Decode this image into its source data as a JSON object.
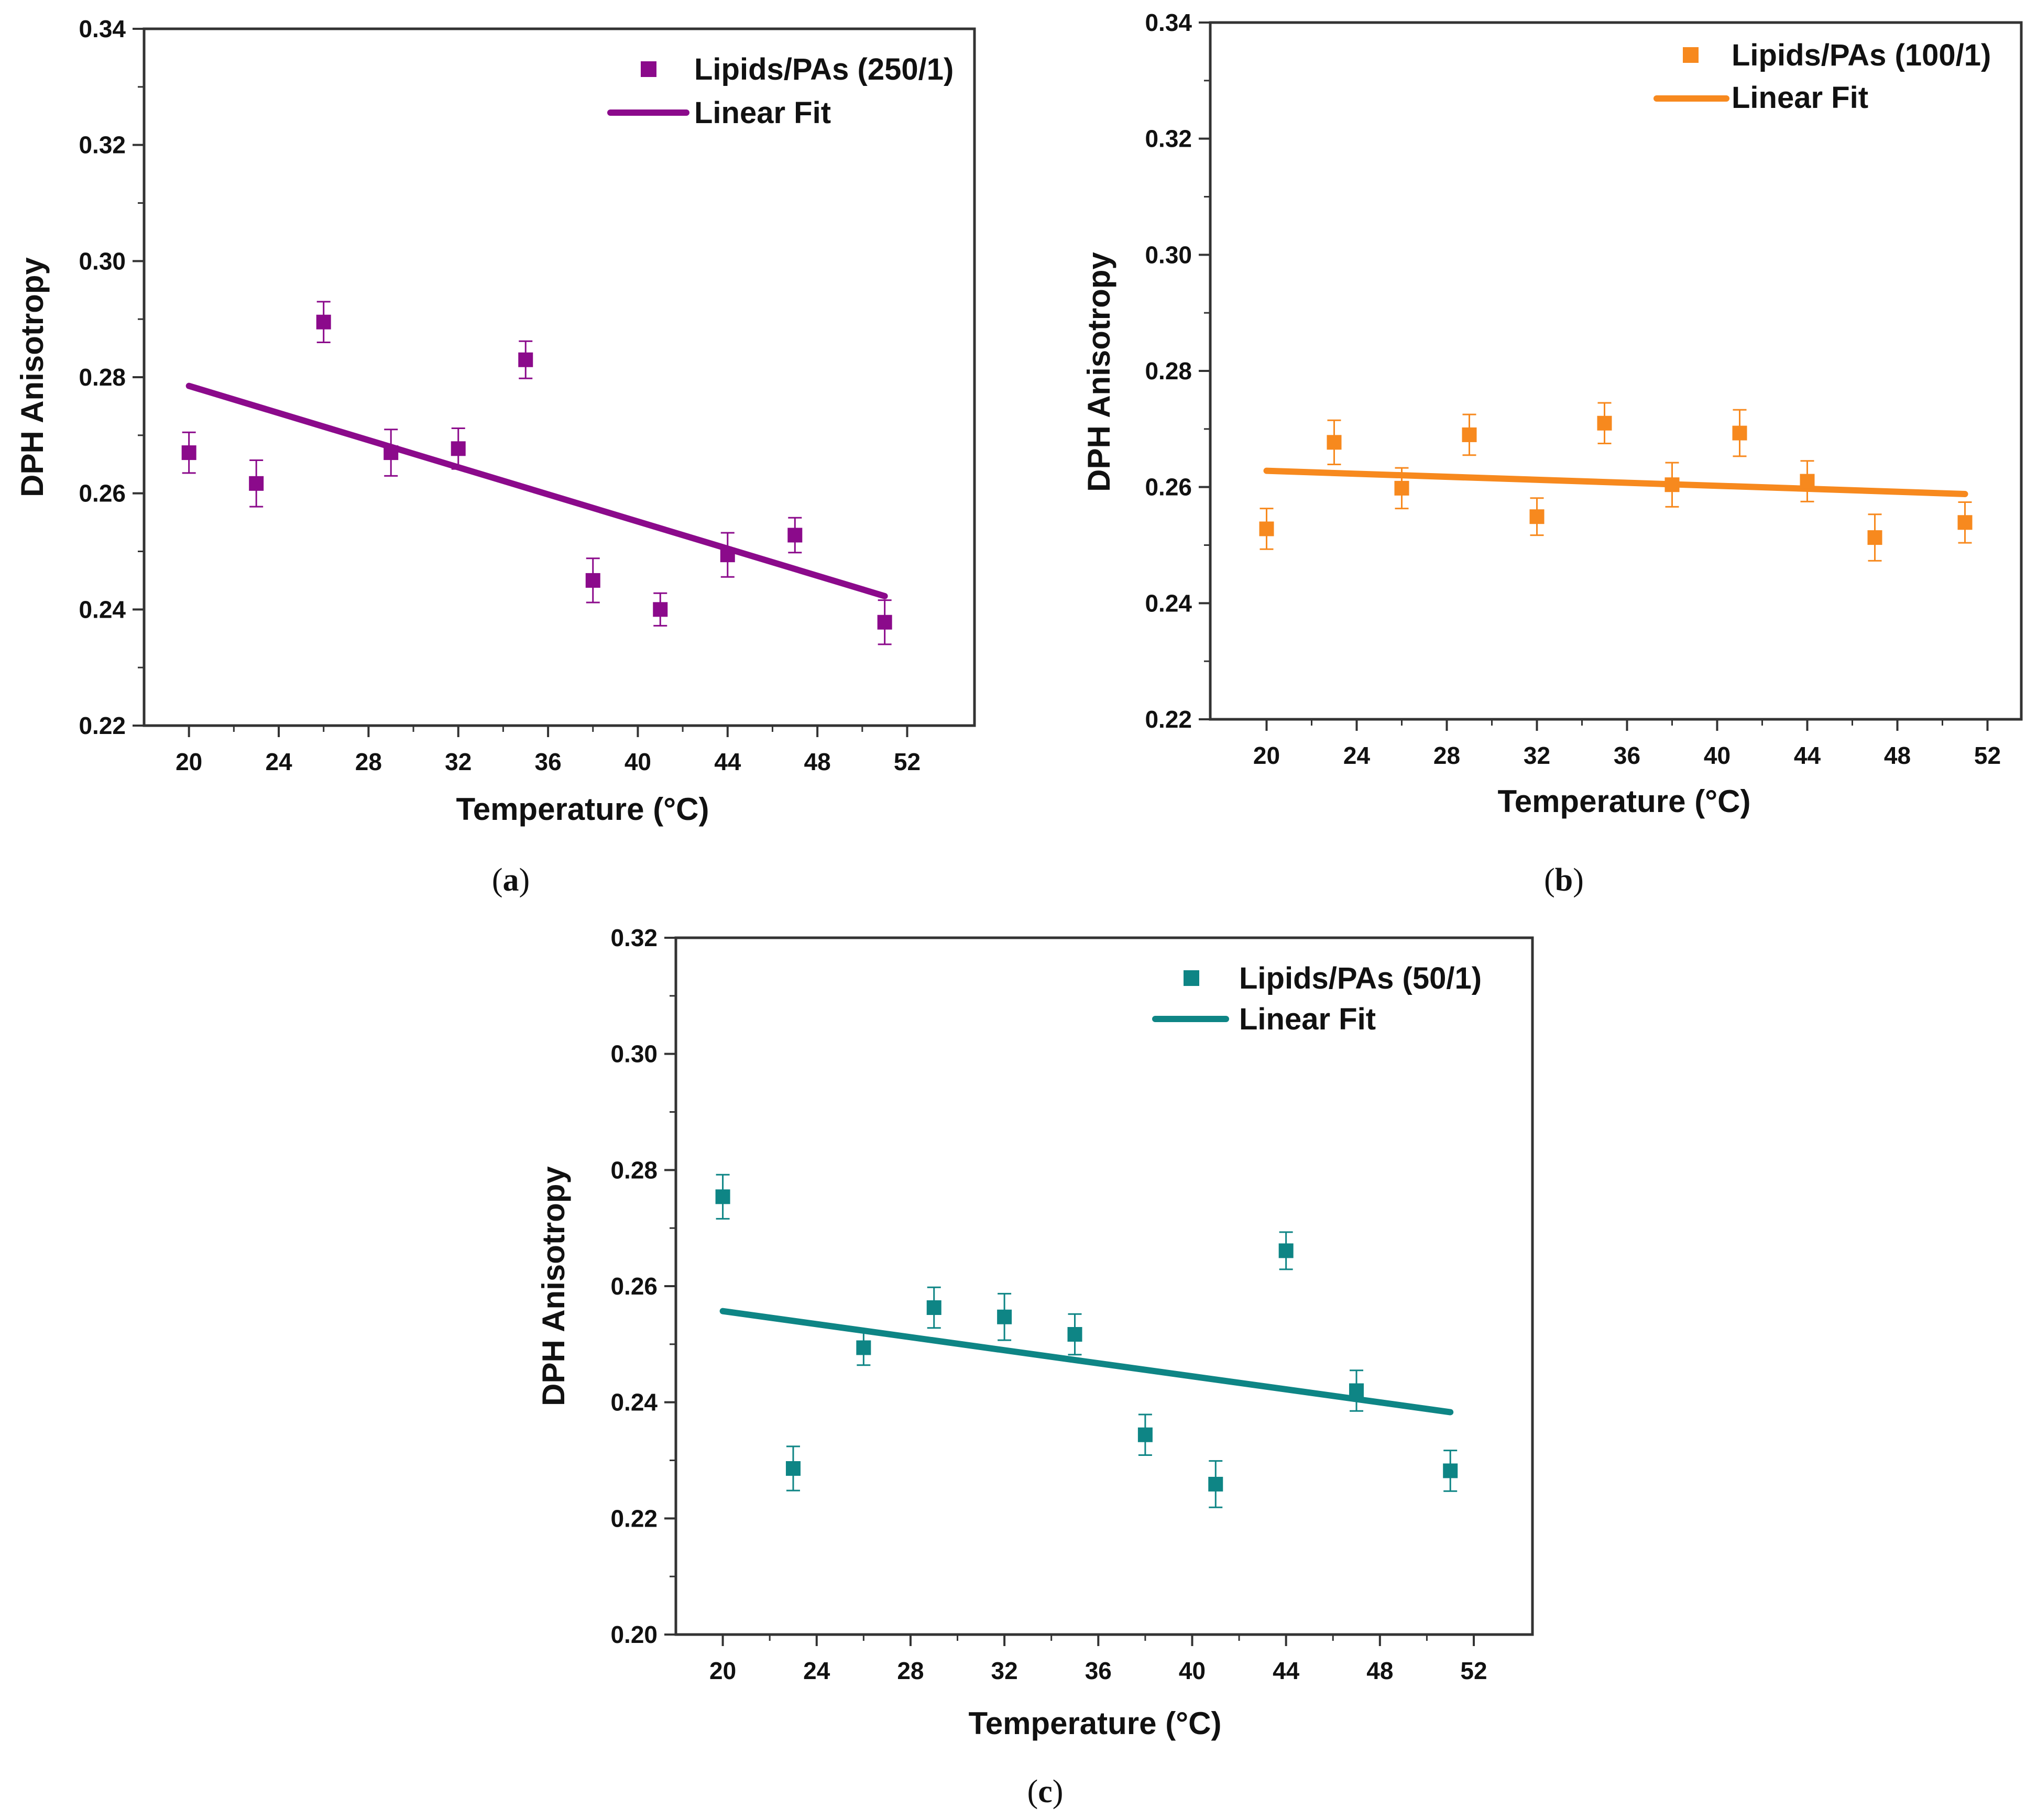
{
  "chart_data": [
    {
      "type": "scatter",
      "panel_label": "a",
      "caption": "(a)",
      "xlabel": "Temperature (°C)",
      "ylabel": "DPH Anisotropy",
      "xlim": [
        18,
        55
      ],
      "ylim": [
        0.22,
        0.34
      ],
      "xticks": [
        20,
        24,
        28,
        32,
        36,
        40,
        44,
        48,
        52
      ],
      "xtick_labels": [
        "20",
        "24",
        "28",
        "32",
        "36",
        "40",
        "44",
        "48",
        "52"
      ],
      "yticks": [
        0.22,
        0.24,
        0.26,
        0.28,
        0.3,
        0.32,
        0.34
      ],
      "ytick_labels": [
        "0.22",
        "0.24",
        "0.26",
        "0.28",
        "0.30",
        "0.32",
        "0.34"
      ],
      "color": "#8B0A8B",
      "legend_position": "top-right",
      "series": [
        {
          "name": "Lipids/PAs (250/1)",
          "marker": "square",
          "x": [
            20,
            23,
            26,
            29,
            32,
            35,
            38,
            41,
            44,
            47,
            51
          ],
          "y": [
            0.267,
            0.2617,
            0.2895,
            0.267,
            0.2677,
            0.283,
            0.245,
            0.24,
            0.2494,
            0.2528,
            0.2378
          ],
          "yerr": [
            0.0035,
            0.004,
            0.0035,
            0.004,
            0.0035,
            0.0032,
            0.0038,
            0.0028,
            0.0038,
            0.003,
            0.0038
          ]
        },
        {
          "name": "Linear Fit",
          "style": "line",
          "x": [
            20,
            51
          ],
          "y": [
            0.2785,
            0.2423
          ]
        }
      ]
    },
    {
      "type": "scatter",
      "panel_label": "b",
      "caption": "(b)",
      "xlabel": "Temperature (°C)",
      "ylabel": "DPH Anisotropy",
      "xlim": [
        17.5,
        53.5
      ],
      "ylim": [
        0.22,
        0.34
      ],
      "xticks": [
        20,
        24,
        28,
        32,
        36,
        40,
        44,
        48,
        52
      ],
      "xtick_labels": [
        "20",
        "24",
        "28",
        "32",
        "36",
        "40",
        "44",
        "48",
        "52"
      ],
      "yticks": [
        0.22,
        0.24,
        0.26,
        0.28,
        0.3,
        0.32,
        0.34
      ],
      "ytick_labels": [
        "0.22",
        "0.24",
        "0.26",
        "0.28",
        "0.30",
        "0.32",
        "0.34"
      ],
      "color": "#F7891E",
      "legend_position": "top-right",
      "series": [
        {
          "name": "Lipids/PAs (100/1)",
          "marker": "square",
          "x": [
            20,
            23,
            26,
            29,
            32,
            35,
            38,
            41,
            44,
            47,
            51
          ],
          "y": [
            0.2528,
            0.2677,
            0.2598,
            0.269,
            0.2549,
            0.271,
            0.2604,
            0.2693,
            0.261,
            0.2513,
            0.2539
          ],
          "yerr": [
            0.0035,
            0.0038,
            0.0035,
            0.0035,
            0.0032,
            0.0035,
            0.0038,
            0.004,
            0.0035,
            0.004,
            0.0035
          ]
        },
        {
          "name": "Linear Fit",
          "style": "line",
          "x": [
            20,
            51
          ],
          "y": [
            0.2628,
            0.2588
          ]
        }
      ]
    },
    {
      "type": "scatter",
      "panel_label": "c",
      "caption": "(c)",
      "xlabel": "Temperature (°C)",
      "ylabel": "DPH Anisotropy",
      "xlim": [
        18,
        54.5
      ],
      "ylim": [
        0.2,
        0.32
      ],
      "xticks": [
        20,
        24,
        28,
        32,
        36,
        40,
        44,
        48,
        52
      ],
      "xtick_labels": [
        "20",
        "24",
        "28",
        "32",
        "36",
        "40",
        "44",
        "48",
        "52"
      ],
      "yticks": [
        0.2,
        0.22,
        0.24,
        0.26,
        0.28,
        0.3,
        0.32
      ],
      "ytick_labels": [
        "0.20",
        "0.22",
        "0.24",
        "0.26",
        "0.28",
        "0.30",
        "0.32"
      ],
      "color": "#0E8585",
      "legend_position": "top-right",
      "series": [
        {
          "name": "Lipids/PAs (50/1)",
          "marker": "square",
          "x": [
            20,
            23,
            26,
            29,
            32,
            35,
            38,
            41,
            44,
            47,
            51
          ],
          "y": [
            0.2754,
            0.2286,
            0.2494,
            0.2563,
            0.2547,
            0.2517,
            0.2344,
            0.2259,
            0.2661,
            0.242,
            0.2282
          ],
          "yerr": [
            0.0038,
            0.0038,
            0.003,
            0.0035,
            0.004,
            0.0035,
            0.0035,
            0.004,
            0.0032,
            0.0035,
            0.0035
          ]
        },
        {
          "name": "Linear Fit",
          "style": "line",
          "x": [
            20,
            51
          ],
          "y": [
            0.2557,
            0.2383
          ]
        }
      ]
    }
  ]
}
